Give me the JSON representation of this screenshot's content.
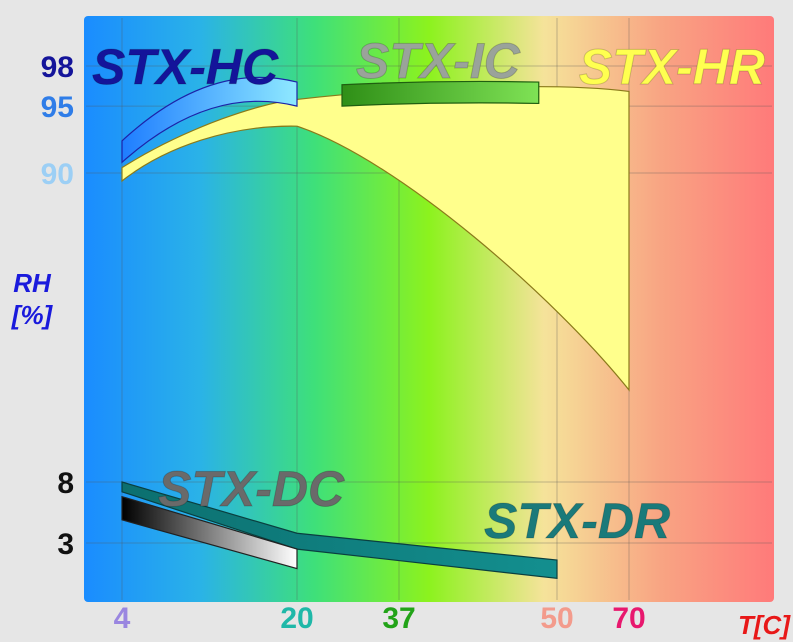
{
  "chart_data": {
    "type": "area",
    "title": "",
    "xlabel": "T[C]",
    "ylabel": "RH [%]",
    "ylabel_lines": [
      "RH",
      "[%]"
    ],
    "x_ticks": [
      {
        "label": "4",
        "value": 4,
        "color": "#9a86e0"
      },
      {
        "label": "20",
        "value": 20,
        "color": "#1fb8a8"
      },
      {
        "label": "37",
        "value": 37,
        "color": "#22a318"
      },
      {
        "label": "50",
        "value": 50,
        "color": "#f39b8c"
      },
      {
        "label": "70",
        "value": 70,
        "color": "#e8186e"
      }
    ],
    "y_ticks": [
      {
        "label": "98",
        "value": 98,
        "color": "#14149a"
      },
      {
        "label": "95",
        "value": 95,
        "color": "#2f7de8"
      },
      {
        "label": "90",
        "value": 90,
        "color": "#9ccff5"
      },
      {
        "label": "8",
        "value": 8,
        "color": "#111111"
      },
      {
        "label": "3",
        "value": 3,
        "color": "#111111"
      }
    ],
    "background_gradient": [
      "#1a8cff",
      "#2ab2e8",
      "#3ee07a",
      "#8cf21e",
      "#f5e39a",
      "#f8a583",
      "#ff7a7a"
    ],
    "grid": true,
    "series": [
      {
        "name": "STX-HC",
        "color": "#5ad0ff",
        "label_color": "#14149a",
        "x": [
          4,
          20
        ],
        "y_top": [
          92.4,
          96.8
        ],
        "y_bottom": [
          90.8,
          95.0
        ]
      },
      {
        "name": "STX-IC",
        "color": "#3ea81e",
        "label_color": "#9aa39a",
        "x": [
          27.5,
          48.5
        ],
        "y_top": [
          96.6,
          96.8
        ],
        "y_bottom": [
          95.0,
          95.2
        ]
      },
      {
        "name": "STX-HR",
        "color": "#ffff8c",
        "label_color": "#ffff50",
        "x": [
          4,
          20,
          37,
          50,
          70
        ],
        "y_top": [
          90.4,
          95.5,
          96.3,
          96.5,
          96.1
        ],
        "y_bottom": [
          89.4,
          93.5,
          87.5,
          73,
          57
        ]
      },
      {
        "name": "STX-DC",
        "color": "#ffffff",
        "label_color": "#6a6a6a",
        "x": [
          4,
          20
        ],
        "y_top": [
          6.8,
          2.5
        ],
        "y_bottom": [
          4.9,
          0.9
        ]
      },
      {
        "name": "STX-DR",
        "color": "#0f8888",
        "label_color": "#1a7a7a",
        "x": [
          4,
          20,
          50
        ],
        "y_top": [
          8.0,
          3.8,
          1.6
        ],
        "y_bottom": [
          7.2,
          2.5,
          0.1
        ]
      }
    ]
  }
}
